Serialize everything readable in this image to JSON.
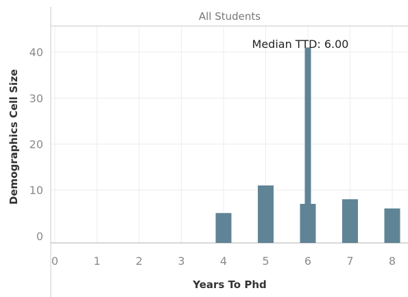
{
  "chart_data": {
    "type": "bar",
    "panel_title": "All Students",
    "xlabel": "Years To Phd",
    "ylabel": "Demographics Cell Size",
    "x_ticks": [
      "0",
      "1",
      "2",
      "3",
      "4",
      "5",
      "6",
      "7",
      "8"
    ],
    "y_ticks": [
      "0",
      "10",
      "20",
      "30",
      "40"
    ],
    "ylim": [
      -1.5,
      46
    ],
    "xlim": [
      0,
      8
    ],
    "bars": [
      {
        "x": 4,
        "value": 5
      },
      {
        "x": 5,
        "value": 11
      },
      {
        "x": 6,
        "value": 7
      },
      {
        "x": 7,
        "value": 8
      },
      {
        "x": 8,
        "value": 6
      }
    ],
    "median_line": {
      "x": 6,
      "value": 41
    },
    "annotation": "Median TTD: 6.00",
    "bar_color": "#5f8496",
    "grid": true
  }
}
